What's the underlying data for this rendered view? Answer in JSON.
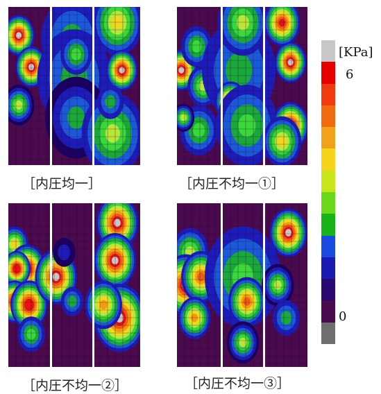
{
  "colors": {
    "bg": "#4a0a4e",
    "grid": "#2b0030",
    "separator": "#ffffff",
    "levels": [
      "#1a0060",
      "#1c1cb8",
      "#1a5ad8",
      "#1aa83a",
      "#3ad83a",
      "#b8e63a",
      "#f2d81a",
      "#f29a14",
      "#f05a14",
      "#e01414",
      "#f01010",
      "#c8c8c8"
    ]
  },
  "chart_data": {
    "type": "heatmap",
    "colorbar": {
      "unit": "[KPa]",
      "max_label": "6",
      "min_label": "0",
      "steps": [
        "#c8c8c8",
        "#e80000",
        "#f03a10",
        "#f06a10",
        "#f2a21a",
        "#f5d41a",
        "#c8e61a",
        "#6ad81a",
        "#1ab41a",
        "#1a4ae0",
        "#1a1ab4",
        "#2a0a70",
        "#4a0a4e",
        "#6e6e6e"
      ]
    },
    "panels": [
      {
        "caption": "［内圧均一］",
        "blobs": [
          {
            "s": 0,
            "x": 0.25,
            "y": 0.18,
            "r": 0.12,
            "v": 6.5
          },
          {
            "s": 0,
            "x": 0.55,
            "y": 0.38,
            "r": 0.12,
            "v": 6.5
          },
          {
            "s": 0,
            "x": 0.25,
            "y": 0.62,
            "r": 0.12,
            "v": 3.5
          },
          {
            "s": 1,
            "x": 0.35,
            "y": 0.38,
            "r": 0.18,
            "v": 6.5
          },
          {
            "s": 1,
            "x": 0.5,
            "y": 0.2,
            "r": 0.25,
            "v": 2.0
          },
          {
            "s": 1,
            "x": 0.55,
            "y": 0.45,
            "r": 0.3,
            "v": 2.0
          },
          {
            "s": 1,
            "x": 0.6,
            "y": 0.7,
            "r": 0.25,
            "v": 2.2
          },
          {
            "s": 1,
            "x": 0.6,
            "y": 0.3,
            "r": 0.12,
            "v": 2.8
          },
          {
            "s": 2,
            "x": 0.5,
            "y": 0.1,
            "r": 0.2,
            "v": 4.0
          },
          {
            "s": 2,
            "x": 0.6,
            "y": 0.4,
            "r": 0.12,
            "v": 6.5
          },
          {
            "s": 2,
            "x": 0.55,
            "y": 0.75,
            "r": 0.14,
            "v": 6.5
          },
          {
            "s": 2,
            "x": 0.4,
            "y": 0.8,
            "r": 0.25,
            "v": 3.0
          },
          {
            "s": 2,
            "x": 0.35,
            "y": 0.6,
            "r": 0.1,
            "v": 2.0
          }
        ]
      },
      {
        "caption": "［内圧不均一①］",
        "blobs": [
          {
            "s": 0,
            "x": 0.1,
            "y": 0.4,
            "r": 0.12,
            "v": 6.5
          },
          {
            "s": 0,
            "x": 0.45,
            "y": 0.25,
            "r": 0.12,
            "v": 2.5
          },
          {
            "s": 0,
            "x": 0.6,
            "y": 0.5,
            "r": 0.12,
            "v": 3.0
          },
          {
            "s": 0,
            "x": 0.5,
            "y": 0.78,
            "r": 0.15,
            "v": 2.5
          },
          {
            "s": 0,
            "x": 0.15,
            "y": 0.7,
            "r": 0.08,
            "v": 3.5
          },
          {
            "s": 1,
            "x": 0.4,
            "y": 0.4,
            "r": 0.3,
            "v": 2.0
          },
          {
            "s": 1,
            "x": 0.5,
            "y": 0.1,
            "r": 0.2,
            "v": 3.0
          },
          {
            "s": 1,
            "x": 0.2,
            "y": 0.6,
            "r": 0.12,
            "v": 5.5
          },
          {
            "s": 1,
            "x": 0.6,
            "y": 0.75,
            "r": 0.25,
            "v": 2.5
          },
          {
            "s": 2,
            "x": 0.4,
            "y": 0.1,
            "r": 0.14,
            "v": 5.5
          },
          {
            "s": 2,
            "x": 0.6,
            "y": 0.35,
            "r": 0.12,
            "v": 6.5
          },
          {
            "s": 2,
            "x": 0.6,
            "y": 0.75,
            "r": 0.14,
            "v": 6.5
          },
          {
            "s": 2,
            "x": 0.4,
            "y": 0.85,
            "r": 0.15,
            "v": 4.0
          }
        ]
      },
      {
        "caption": "［内圧不均一②］",
        "blobs": [
          {
            "s": 0,
            "x": 0.15,
            "y": 0.25,
            "r": 0.1,
            "v": 4.0
          },
          {
            "s": 0,
            "x": 0.45,
            "y": 0.4,
            "r": 0.14,
            "v": 6.5
          },
          {
            "s": 0,
            "x": 0.2,
            "y": 0.4,
            "r": 0.1,
            "v": 6.0
          },
          {
            "s": 0,
            "x": 0.15,
            "y": 0.6,
            "r": 0.12,
            "v": 6.5
          },
          {
            "s": 0,
            "x": 0.5,
            "y": 0.62,
            "r": 0.14,
            "v": 6.0
          },
          {
            "s": 0,
            "x": 0.55,
            "y": 0.8,
            "r": 0.1,
            "v": 2.5
          },
          {
            "s": 1,
            "x": 0.1,
            "y": 0.45,
            "r": 0.16,
            "v": 6.5
          },
          {
            "s": 1,
            "x": 0.3,
            "y": 0.3,
            "r": 0.08,
            "v": 1.0
          },
          {
            "s": 1,
            "x": 0.5,
            "y": 0.6,
            "r": 0.08,
            "v": 2.0
          },
          {
            "s": 2,
            "x": 0.5,
            "y": 0.12,
            "r": 0.16,
            "v": 6.5
          },
          {
            "s": 2,
            "x": 0.45,
            "y": 0.35,
            "r": 0.16,
            "v": 6.5
          },
          {
            "s": 2,
            "x": 0.55,
            "y": 0.7,
            "r": 0.2,
            "v": 6.5
          },
          {
            "s": 2,
            "x": 0.2,
            "y": 0.62,
            "r": 0.14,
            "v": 4.5
          }
        ]
      },
      {
        "caption": "［内圧不均一③］",
        "blobs": [
          {
            "s": 0,
            "x": 0.3,
            "y": 0.3,
            "r": 0.14,
            "v": 3.0
          },
          {
            "s": 0,
            "x": 0.2,
            "y": 0.5,
            "r": 0.18,
            "v": 6.5
          },
          {
            "s": 0,
            "x": 0.55,
            "y": 0.45,
            "r": 0.15,
            "v": 5.0
          },
          {
            "s": 0,
            "x": 0.4,
            "y": 0.7,
            "r": 0.12,
            "v": 4.5
          },
          {
            "s": 1,
            "x": 0.2,
            "y": 0.32,
            "r": 0.12,
            "v": 6.5
          },
          {
            "s": 1,
            "x": 0.5,
            "y": 0.45,
            "r": 0.3,
            "v": 2.5
          },
          {
            "s": 1,
            "x": 0.6,
            "y": 0.6,
            "r": 0.14,
            "v": 5.0
          },
          {
            "s": 1,
            "x": 0.5,
            "y": 0.85,
            "r": 0.12,
            "v": 3.5
          },
          {
            "s": 2,
            "x": 0.55,
            "y": 0.18,
            "r": 0.14,
            "v": 6.5
          },
          {
            "s": 2,
            "x": 0.3,
            "y": 0.5,
            "r": 0.12,
            "v": 3.5
          },
          {
            "s": 2,
            "x": 0.5,
            "y": 0.7,
            "r": 0.1,
            "v": 2.0
          }
        ]
      }
    ]
  }
}
